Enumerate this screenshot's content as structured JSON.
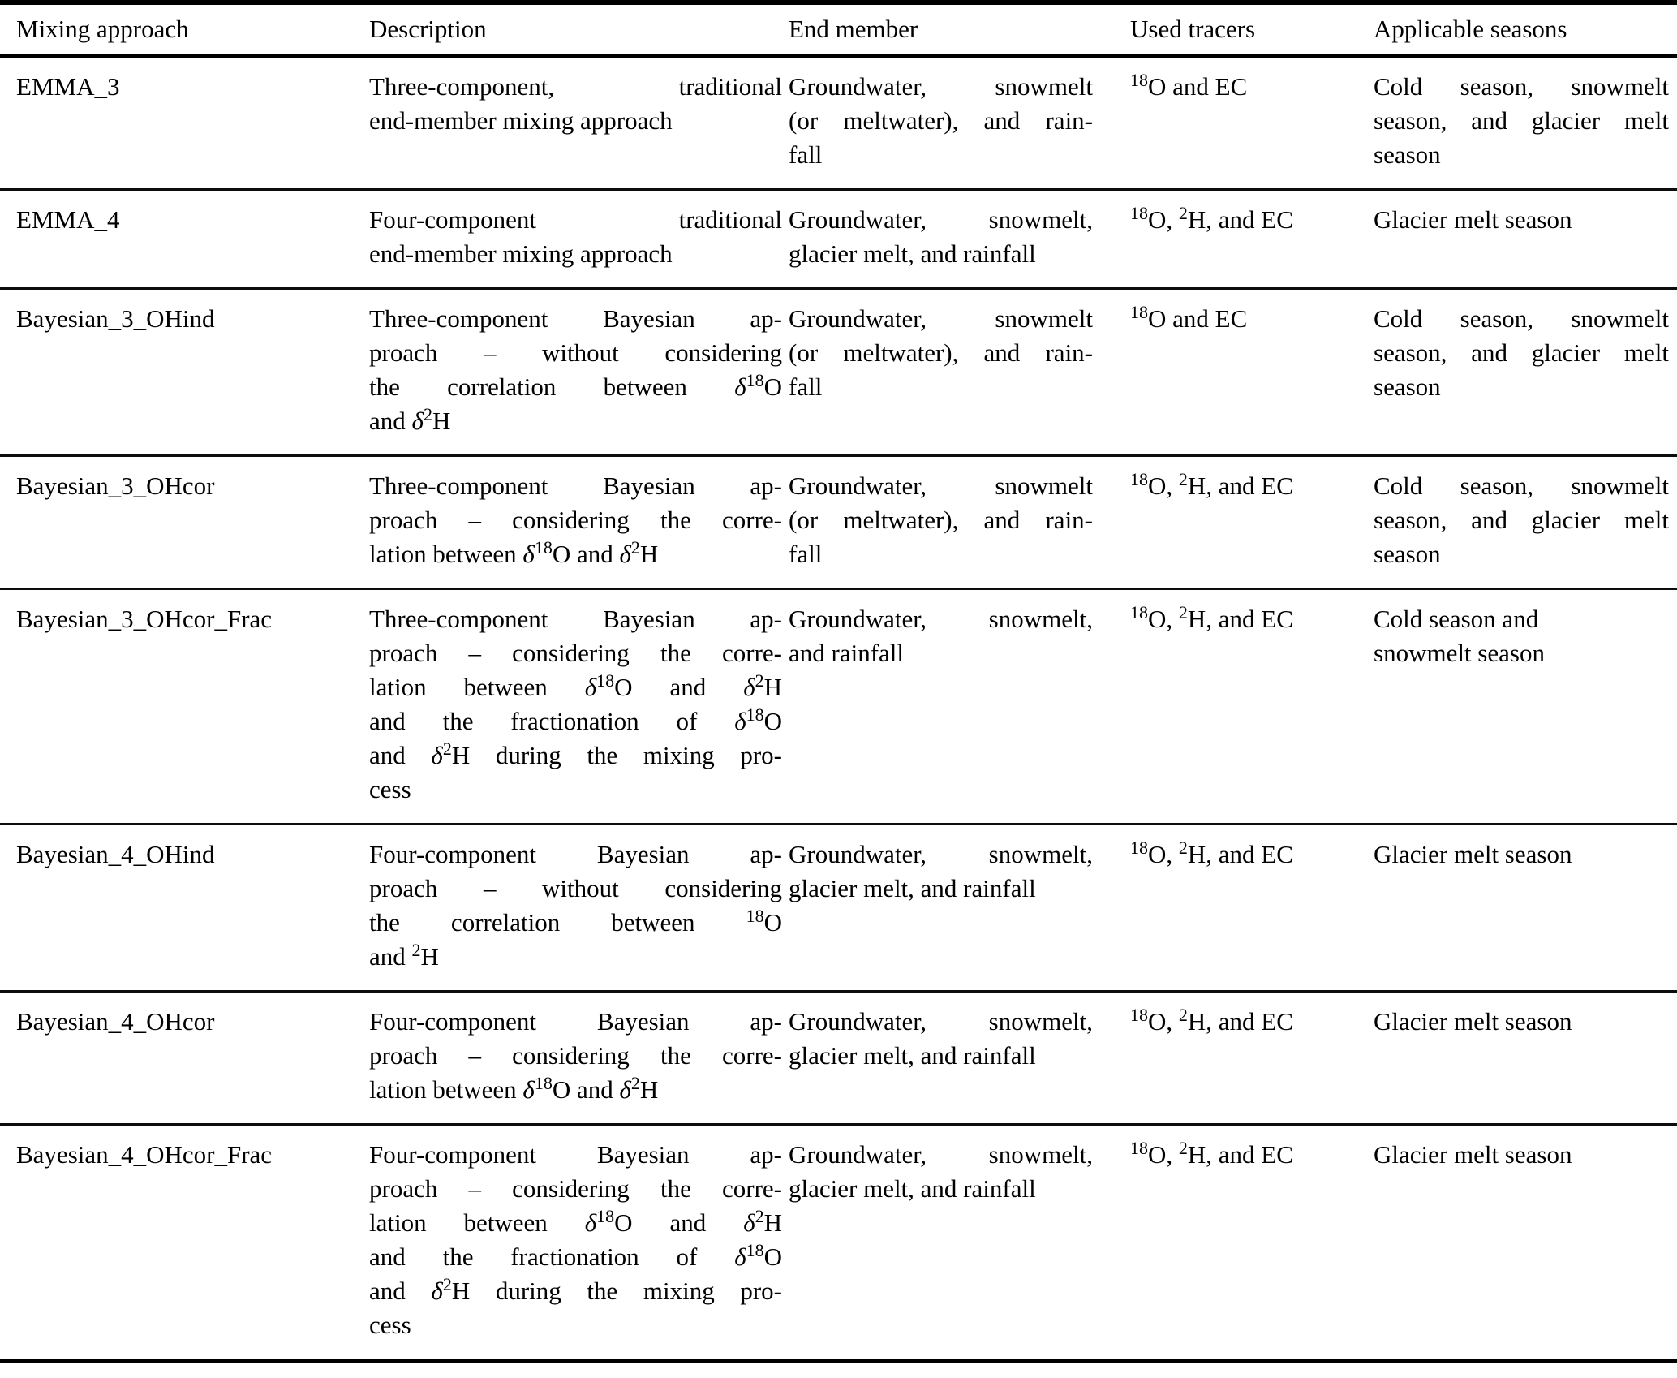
{
  "table": {
    "columns": [
      "Mixing approach",
      "Description",
      "End member",
      "Used tracers",
      "Applicable seasons"
    ],
    "rows": [
      {
        "cells": [
          {
            "lines": [
              {
                "t": "EMMA_3",
                "j": false
              }
            ]
          },
          {
            "lines": [
              {
                "t": "Three-component, traditional",
                "j": true
              },
              {
                "t": "end-member mixing approach",
                "j": false
              }
            ]
          },
          {
            "lines": [
              {
                "t": "Groundwater, snowmelt",
                "j": true
              },
              {
                "t": "(or meltwater), and rain-",
                "j": true
              },
              {
                "t": "fall",
                "j": false
              }
            ]
          },
          {
            "lines": [
              {
                "t": "^{18}O and EC",
                "j": false
              }
            ]
          },
          {
            "lines": [
              {
                "t": "Cold season, snowmelt",
                "j": true
              },
              {
                "t": "season, and glacier melt",
                "j": true
              },
              {
                "t": "season",
                "j": false
              }
            ]
          }
        ]
      },
      {
        "cells": [
          {
            "lines": [
              {
                "t": "EMMA_4",
                "j": false
              }
            ]
          },
          {
            "lines": [
              {
                "t": "Four-component traditional",
                "j": true
              },
              {
                "t": "end-member mixing approach",
                "j": false
              }
            ]
          },
          {
            "lines": [
              {
                "t": "Groundwater, snowmelt,",
                "j": true
              },
              {
                "t": "glacier melt, and rainfall",
                "j": false
              }
            ]
          },
          {
            "lines": [
              {
                "t": "^{18}O, ^{2}H, and EC",
                "j": false
              }
            ]
          },
          {
            "lines": [
              {
                "t": "Glacier melt season",
                "j": false
              }
            ]
          }
        ]
      },
      {
        "cells": [
          {
            "lines": [
              {
                "t": "Bayesian_3_OHind",
                "j": false
              }
            ]
          },
          {
            "lines": [
              {
                "t": "Three-component Bayesian ap-",
                "j": true
              },
              {
                "t": "proach – without considering",
                "j": true
              },
              {
                "t": "the correlation between δ^{18}O",
                "j": true
              },
              {
                "t": "and δ^{2}H",
                "j": false
              }
            ]
          },
          {
            "lines": [
              {
                "t": "Groundwater, snowmelt",
                "j": true
              },
              {
                "t": "(or meltwater), and rain-",
                "j": true
              },
              {
                "t": "fall",
                "j": false
              }
            ]
          },
          {
            "lines": [
              {
                "t": "^{18}O and EC",
                "j": false
              }
            ]
          },
          {
            "lines": [
              {
                "t": "Cold season, snowmelt",
                "j": true
              },
              {
                "t": "season, and glacier melt",
                "j": true
              },
              {
                "t": "season",
                "j": false
              }
            ]
          }
        ]
      },
      {
        "cells": [
          {
            "lines": [
              {
                "t": "Bayesian_3_OHcor",
                "j": false
              }
            ]
          },
          {
            "lines": [
              {
                "t": "Three-component Bayesian ap-",
                "j": true
              },
              {
                "t": "proach – considering the corre-",
                "j": true
              },
              {
                "t": "lation between δ^{18}O and δ^{2}H",
                "j": false
              }
            ]
          },
          {
            "lines": [
              {
                "t": "Groundwater, snowmelt",
                "j": true
              },
              {
                "t": "(or meltwater), and rain-",
                "j": true
              },
              {
                "t": "fall",
                "j": false
              }
            ]
          },
          {
            "lines": [
              {
                "t": "^{18}O, ^{2}H, and EC",
                "j": false
              }
            ]
          },
          {
            "lines": [
              {
                "t": "Cold season, snowmelt",
                "j": true
              },
              {
                "t": "season, and glacier melt",
                "j": true
              },
              {
                "t": "season",
                "j": false
              }
            ]
          }
        ]
      },
      {
        "cells": [
          {
            "lines": [
              {
                "t": "Bayesian_3_OHcor_Frac",
                "j": false
              }
            ]
          },
          {
            "lines": [
              {
                "t": "Three-component Bayesian ap-",
                "j": true
              },
              {
                "t": "proach – considering the corre-",
                "j": true
              },
              {
                "t": "lation between δ^{18}O and δ^{2}H",
                "j": true
              },
              {
                "t": "and the fractionation of δ^{18}O",
                "j": true
              },
              {
                "t": "and δ^{2}H during the mixing pro-",
                "j": true
              },
              {
                "t": "cess",
                "j": false
              }
            ]
          },
          {
            "lines": [
              {
                "t": "Groundwater, snowmelt,",
                "j": true
              },
              {
                "t": "and rainfall",
                "j": false
              }
            ]
          },
          {
            "lines": [
              {
                "t": "^{18}O, ^{2}H, and EC",
                "j": false
              }
            ]
          },
          {
            "lines": [
              {
                "t": "Cold season and",
                "j": false
              },
              {
                "t": "snowmelt season",
                "j": false
              }
            ]
          }
        ]
      },
      {
        "cells": [
          {
            "lines": [
              {
                "t": "Bayesian_4_OHind",
                "j": false
              }
            ]
          },
          {
            "lines": [
              {
                "t": "Four-component Bayesian ap-",
                "j": true
              },
              {
                "t": "proach – without considering",
                "j": true
              },
              {
                "t": "the correlation between ^{18}O",
                "j": true
              },
              {
                "t": "and ^{2}H",
                "j": false
              }
            ]
          },
          {
            "lines": [
              {
                "t": "Groundwater, snowmelt,",
                "j": true
              },
              {
                "t": "glacier melt, and rainfall",
                "j": false
              }
            ]
          },
          {
            "lines": [
              {
                "t": "^{18}O, ^{2}H, and EC",
                "j": false
              }
            ]
          },
          {
            "lines": [
              {
                "t": "Glacier melt season",
                "j": false
              }
            ]
          }
        ]
      },
      {
        "cells": [
          {
            "lines": [
              {
                "t": "Bayesian_4_OHcor",
                "j": false
              }
            ]
          },
          {
            "lines": [
              {
                "t": "Four-component Bayesian ap-",
                "j": true
              },
              {
                "t": "proach – considering the corre-",
                "j": true
              },
              {
                "t": "lation between δ^{18}O and δ^{2}H",
                "j": false
              }
            ]
          },
          {
            "lines": [
              {
                "t": "Groundwater, snowmelt,",
                "j": true
              },
              {
                "t": "glacier melt, and rainfall",
                "j": false
              }
            ]
          },
          {
            "lines": [
              {
                "t": "^{18}O, ^{2}H, and EC",
                "j": false
              }
            ]
          },
          {
            "lines": [
              {
                "t": "Glacier melt season",
                "j": false
              }
            ]
          }
        ]
      },
      {
        "cells": [
          {
            "lines": [
              {
                "t": "Bayesian_4_OHcor_Frac",
                "j": false
              }
            ]
          },
          {
            "lines": [
              {
                "t": "Four-component Bayesian ap-",
                "j": true
              },
              {
                "t": "proach – considering the corre-",
                "j": true
              },
              {
                "t": "lation between δ^{18}O and δ^{2}H",
                "j": true
              },
              {
                "t": "and the fractionation of δ^{18}O",
                "j": true
              },
              {
                "t": "and δ^{2}H during the mixing pro-",
                "j": true
              },
              {
                "t": "cess",
                "j": false
              }
            ]
          },
          {
            "lines": [
              {
                "t": "Groundwater, snowmelt,",
                "j": true
              },
              {
                "t": "glacier melt, and rainfall",
                "j": false
              }
            ]
          },
          {
            "lines": [
              {
                "t": "^{18}O, ^{2}H, and EC",
                "j": false
              }
            ]
          },
          {
            "lines": [
              {
                "t": "Glacier melt season",
                "j": false
              }
            ]
          }
        ]
      }
    ]
  }
}
